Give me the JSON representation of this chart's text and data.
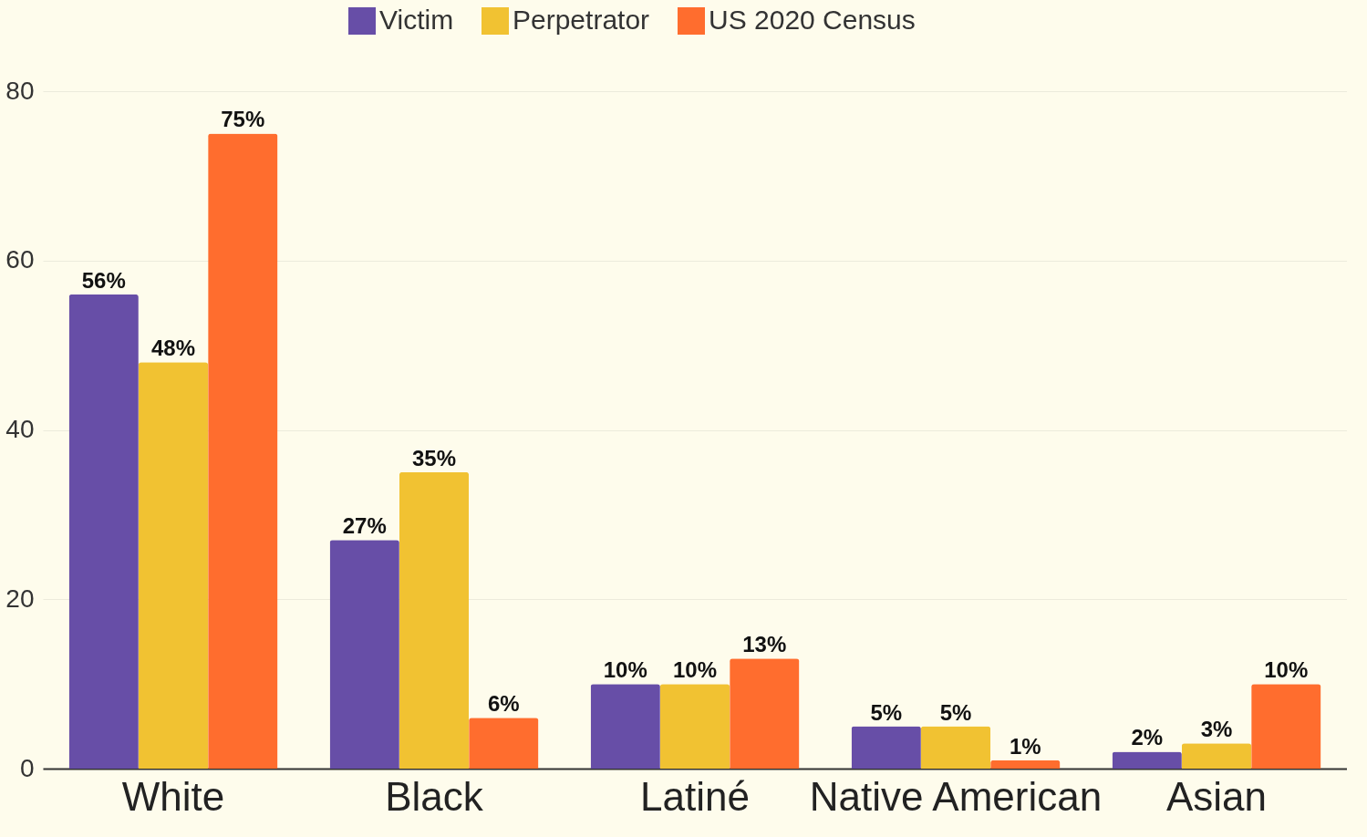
{
  "chart_data": {
    "type": "bar",
    "categories": [
      "White",
      "Black",
      "Latiné",
      "Native American",
      "Asian"
    ],
    "series": [
      {
        "name": "Victim",
        "color": "#674ea7",
        "values": [
          56,
          27,
          10,
          5,
          2
        ],
        "value_labels": [
          "56%",
          "27%",
          "10%",
          "5%",
          "2%"
        ]
      },
      {
        "name": "Perpetrator",
        "color": "#f1c232",
        "values": [
          48,
          35,
          10,
          5,
          3
        ],
        "value_labels": [
          "48%",
          "35%",
          "10%",
          "5%",
          "3%"
        ]
      },
      {
        "name": "US 2020 Census",
        "color": "#ff6d2e",
        "values": [
          75,
          6,
          13,
          1,
          10
        ],
        "value_labels": [
          "75%",
          "6%",
          "13%",
          "1%",
          "10%"
        ]
      }
    ],
    "ylim": [
      0,
      80
    ],
    "yticks": [
      0,
      20,
      40,
      60,
      80
    ],
    "grid": "y",
    "legend": "top"
  }
}
